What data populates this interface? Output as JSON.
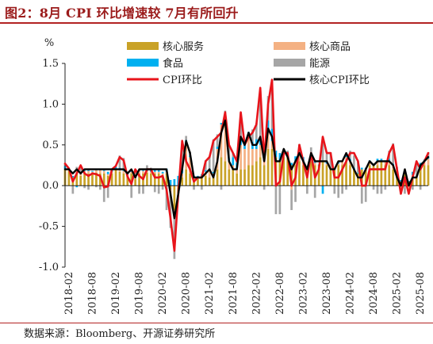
{
  "header": {
    "title": "图2：8月 CPI 环比增速较 7月有所回升"
  },
  "footer": {
    "source": "数据来源：Bloomberg、开源证券研究所"
  },
  "colors": {
    "core_services": "#c9a227",
    "core_goods": "#f4b183",
    "food": "#00b0f0",
    "energy": "#a6a6a6",
    "cpi": "#e8141b",
    "core_cpi": "#000000",
    "title": "#9b1b1b"
  },
  "chart_data": {
    "type": "bar",
    "y_unit": "%",
    "ylim": [
      -1.0,
      1.5
    ],
    "yticks": [
      "1.5",
      "1.0",
      "0.5",
      "0.0",
      "-0.5",
      "-1.0"
    ],
    "x_tick_labels": [
      "2018-02",
      "2018-08",
      "2019-02",
      "2019-08",
      "2020-02",
      "2020-08",
      "2021-02",
      "2021-08",
      "2022-02",
      "2022-08",
      "2023-02",
      "2023-08",
      "2024-02",
      "2024-08",
      "2025-02",
      "2025-08"
    ],
    "months_start": "2018-01",
    "legend": [
      "核心服务",
      "核心商品",
      "食品",
      "能源",
      "CPI环比",
      "核心CPI环比"
    ],
    "series": [
      {
        "name": "CPI环比",
        "kind": "line",
        "values": [
          0.27,
          0.21,
          0.05,
          0.15,
          0.25,
          0.15,
          0.12,
          0.15,
          0.14,
          0.12,
          -0.02,
          -0.01,
          0.2,
          0.24,
          0.35,
          0.31,
          0.11,
          0.02,
          0.2,
          0.12,
          0.08,
          0.2,
          0.2,
          0.1,
          0.1,
          0.12,
          -0.05,
          -0.4,
          -0.8,
          -0.1,
          0.55,
          0.3,
          0.2,
          0.05,
          0.1,
          0.1,
          0.3,
          0.35,
          0.55,
          0.6,
          0.65,
          0.9,
          0.5,
          0.4,
          0.3,
          0.9,
          0.5,
          0.6,
          0.65,
          0.75,
          1.2,
          0.3,
          1.0,
          1.3,
          0.0,
          0.05,
          0.4,
          0.4,
          0.0,
          0.1,
          0.5,
          0.3,
          0.1,
          0.4,
          0.1,
          0.2,
          0.6,
          0.4,
          0.4,
          0.1,
          0.1,
          0.2,
          0.3,
          0.4,
          0.4,
          0.3,
          0.0,
          0.0,
          0.2,
          0.2,
          0.2,
          0.2,
          0.2,
          0.4,
          0.5,
          0.2,
          -0.1,
          0.1,
          -0.1,
          0.1,
          0.3,
          0.2,
          0.3,
          0.4
        ]
      },
      {
        "name": "核心CPI环比",
        "kind": "line",
        "values": [
          0.2,
          0.2,
          0.15,
          0.2,
          0.15,
          0.2,
          0.2,
          0.2,
          0.2,
          0.2,
          0.2,
          0.2,
          0.2,
          0.2,
          0.2,
          0.2,
          0.15,
          0.2,
          0.1,
          0.2,
          0.2,
          0.2,
          0.2,
          0.2,
          0.2,
          0.2,
          0.2,
          -0.1,
          -0.4,
          -0.1,
          0.2,
          0.55,
          0.4,
          0.1,
          0.1,
          0.1,
          0.15,
          0.2,
          0.1,
          0.3,
          0.65,
          0.8,
          0.3,
          0.2,
          0.2,
          0.6,
          0.5,
          0.65,
          0.5,
          0.5,
          0.6,
          0.3,
          0.7,
          0.6,
          0.3,
          0.3,
          0.45,
          0.35,
          0.2,
          0.3,
          0.4,
          0.3,
          0.2,
          0.4,
          0.3,
          0.3,
          0.3,
          0.3,
          0.2,
          0.2,
          0.3,
          0.3,
          0.4,
          0.3,
          0.2,
          0.1,
          0.1,
          0.2,
          0.3,
          0.25,
          0.3,
          0.3,
          0.3,
          0.3,
          0.25,
          0.1,
          0.0,
          0.2,
          0.0,
          0.1,
          0.1,
          0.25,
          0.3,
          0.35
        ]
      },
      {
        "name": "核心服务",
        "kind": "bar",
        "values": [
          0.2,
          0.18,
          0.1,
          0.15,
          0.12,
          0.15,
          0.15,
          0.15,
          0.16,
          0.15,
          0.15,
          0.12,
          0.15,
          0.2,
          0.17,
          0.15,
          0.12,
          0.15,
          0.08,
          0.15,
          0.15,
          0.16,
          0.15,
          0.15,
          0.15,
          0.12,
          0.15,
          -0.05,
          -0.3,
          -0.1,
          0.1,
          0.2,
          0.15,
          0.05,
          0.08,
          0.1,
          0.12,
          0.1,
          0.1,
          0.2,
          0.35,
          0.3,
          0.2,
          0.2,
          0.15,
          0.2,
          0.2,
          0.25,
          0.25,
          0.3,
          0.35,
          0.25,
          0.45,
          0.45,
          0.35,
          0.3,
          0.35,
          0.35,
          0.25,
          0.25,
          0.3,
          0.25,
          0.2,
          0.3,
          0.25,
          0.25,
          0.3,
          0.25,
          0.2,
          0.2,
          0.25,
          0.25,
          0.3,
          0.25,
          0.2,
          0.15,
          0.2,
          0.2,
          0.25,
          0.25,
          0.25,
          0.3,
          0.25,
          0.25,
          0.2,
          0.1,
          0.05,
          0.15,
          0.05,
          0.08,
          0.1,
          0.2,
          0.25,
          0.25
        ]
      },
      {
        "name": "核心商品",
        "kind": "bar",
        "values": [
          0.0,
          0.02,
          0.0,
          0.03,
          0.02,
          0.03,
          0.03,
          0.02,
          0.03,
          0.04,
          0.03,
          0.02,
          0.02,
          0.01,
          0.02,
          0.03,
          0.02,
          0.02,
          0.01,
          0.03,
          0.03,
          0.02,
          0.02,
          0.02,
          0.02,
          0.03,
          0.02,
          -0.05,
          -0.1,
          0.0,
          0.05,
          0.3,
          0.2,
          0.05,
          0.02,
          0.02,
          0.05,
          0.08,
          0.05,
          0.25,
          0.4,
          0.5,
          0.1,
          0.05,
          0.05,
          0.3,
          0.25,
          0.35,
          0.2,
          0.15,
          0.15,
          0.05,
          0.2,
          0.1,
          0.0,
          0.0,
          0.05,
          0.0,
          -0.05,
          0.05,
          0.1,
          0.05,
          0.0,
          0.05,
          0.03,
          0.0,
          0.0,
          0.02,
          0.0,
          0.0,
          0.02,
          0.05,
          0.05,
          0.05,
          0.0,
          0.0,
          -0.02,
          0.0,
          0.05,
          0.0,
          0.05,
          0.0,
          0.05,
          0.05,
          0.05,
          0.0,
          -0.05,
          0.05,
          -0.05,
          0.05,
          0.0,
          0.05,
          0.05,
          0.08
        ]
      },
      {
        "name": "食品",
        "kind": "bar",
        "values": [
          0.04,
          0.0,
          0.02,
          -0.02,
          0.02,
          0.01,
          0.02,
          0.01,
          0.02,
          0.02,
          0.01,
          0.03,
          0.03,
          0.02,
          0.03,
          0.01,
          0.03,
          0.02,
          0.02,
          0.02,
          0.01,
          0.02,
          0.02,
          0.02,
          0.02,
          0.02,
          0.04,
          0.07,
          0.08,
          0.12,
          0.06,
          0.06,
          0.02,
          0.02,
          0.02,
          0.02,
          0.02,
          0.03,
          0.02,
          0.03,
          0.02,
          0.02,
          0.04,
          0.1,
          0.08,
          0.09,
          0.1,
          0.06,
          0.09,
          0.12,
          0.06,
          0.07,
          0.15,
          0.15,
          0.08,
          0.1,
          0.04,
          0.03,
          0.03,
          0.06,
          0.06,
          0.05,
          0.0,
          0.02,
          0.03,
          0.01,
          -0.1,
          0.02,
          0.01,
          0.02,
          0.03,
          0.0,
          0.02,
          0.03,
          0.02,
          0.01,
          0.02,
          0.02,
          0.01,
          0.02,
          0.03,
          0.03,
          0.01,
          0.03,
          0.02,
          0.03,
          0.02,
          0.0,
          0.01,
          0.04,
          0.0,
          0.03,
          0.02,
          0.03
        ]
      },
      {
        "name": "能源",
        "kind": "bar",
        "values": [
          0.03,
          0.01,
          -0.1,
          0.05,
          0.06,
          -0.03,
          -0.05,
          0.0,
          -0.02,
          -0.05,
          -0.2,
          -0.15,
          0.0,
          0.0,
          0.15,
          0.15,
          0.0,
          -0.15,
          0.09,
          -0.1,
          -0.1,
          0.05,
          0.03,
          -0.08,
          -0.1,
          -0.05,
          -0.3,
          -0.42,
          -0.5,
          0.0,
          0.3,
          0.05,
          0.05,
          -0.05,
          0.0,
          -0.05,
          0.12,
          0.15,
          0.4,
          0.15,
          -0.05,
          0.1,
          0.15,
          0.05,
          0.05,
          0.3,
          0.0,
          0.0,
          0.15,
          0.2,
          0.6,
          -0.05,
          0.3,
          0.6,
          -0.35,
          -0.35,
          0.0,
          0.05,
          -0.25,
          -0.2,
          0.05,
          0.0,
          -0.1,
          0.1,
          -0.15,
          0.0,
          0.3,
          0.1,
          0.2,
          -0.1,
          -0.15,
          -0.1,
          -0.05,
          0.1,
          0.15,
          0.15,
          -0.2,
          -0.2,
          0.0,
          -0.05,
          -0.1,
          -0.1,
          -0.05,
          0.1,
          0.25,
          0.1,
          -0.05,
          -0.1,
          -0.05,
          -0.05,
          0.2,
          -0.05,
          0.0,
          0.05
        ]
      }
    ]
  }
}
